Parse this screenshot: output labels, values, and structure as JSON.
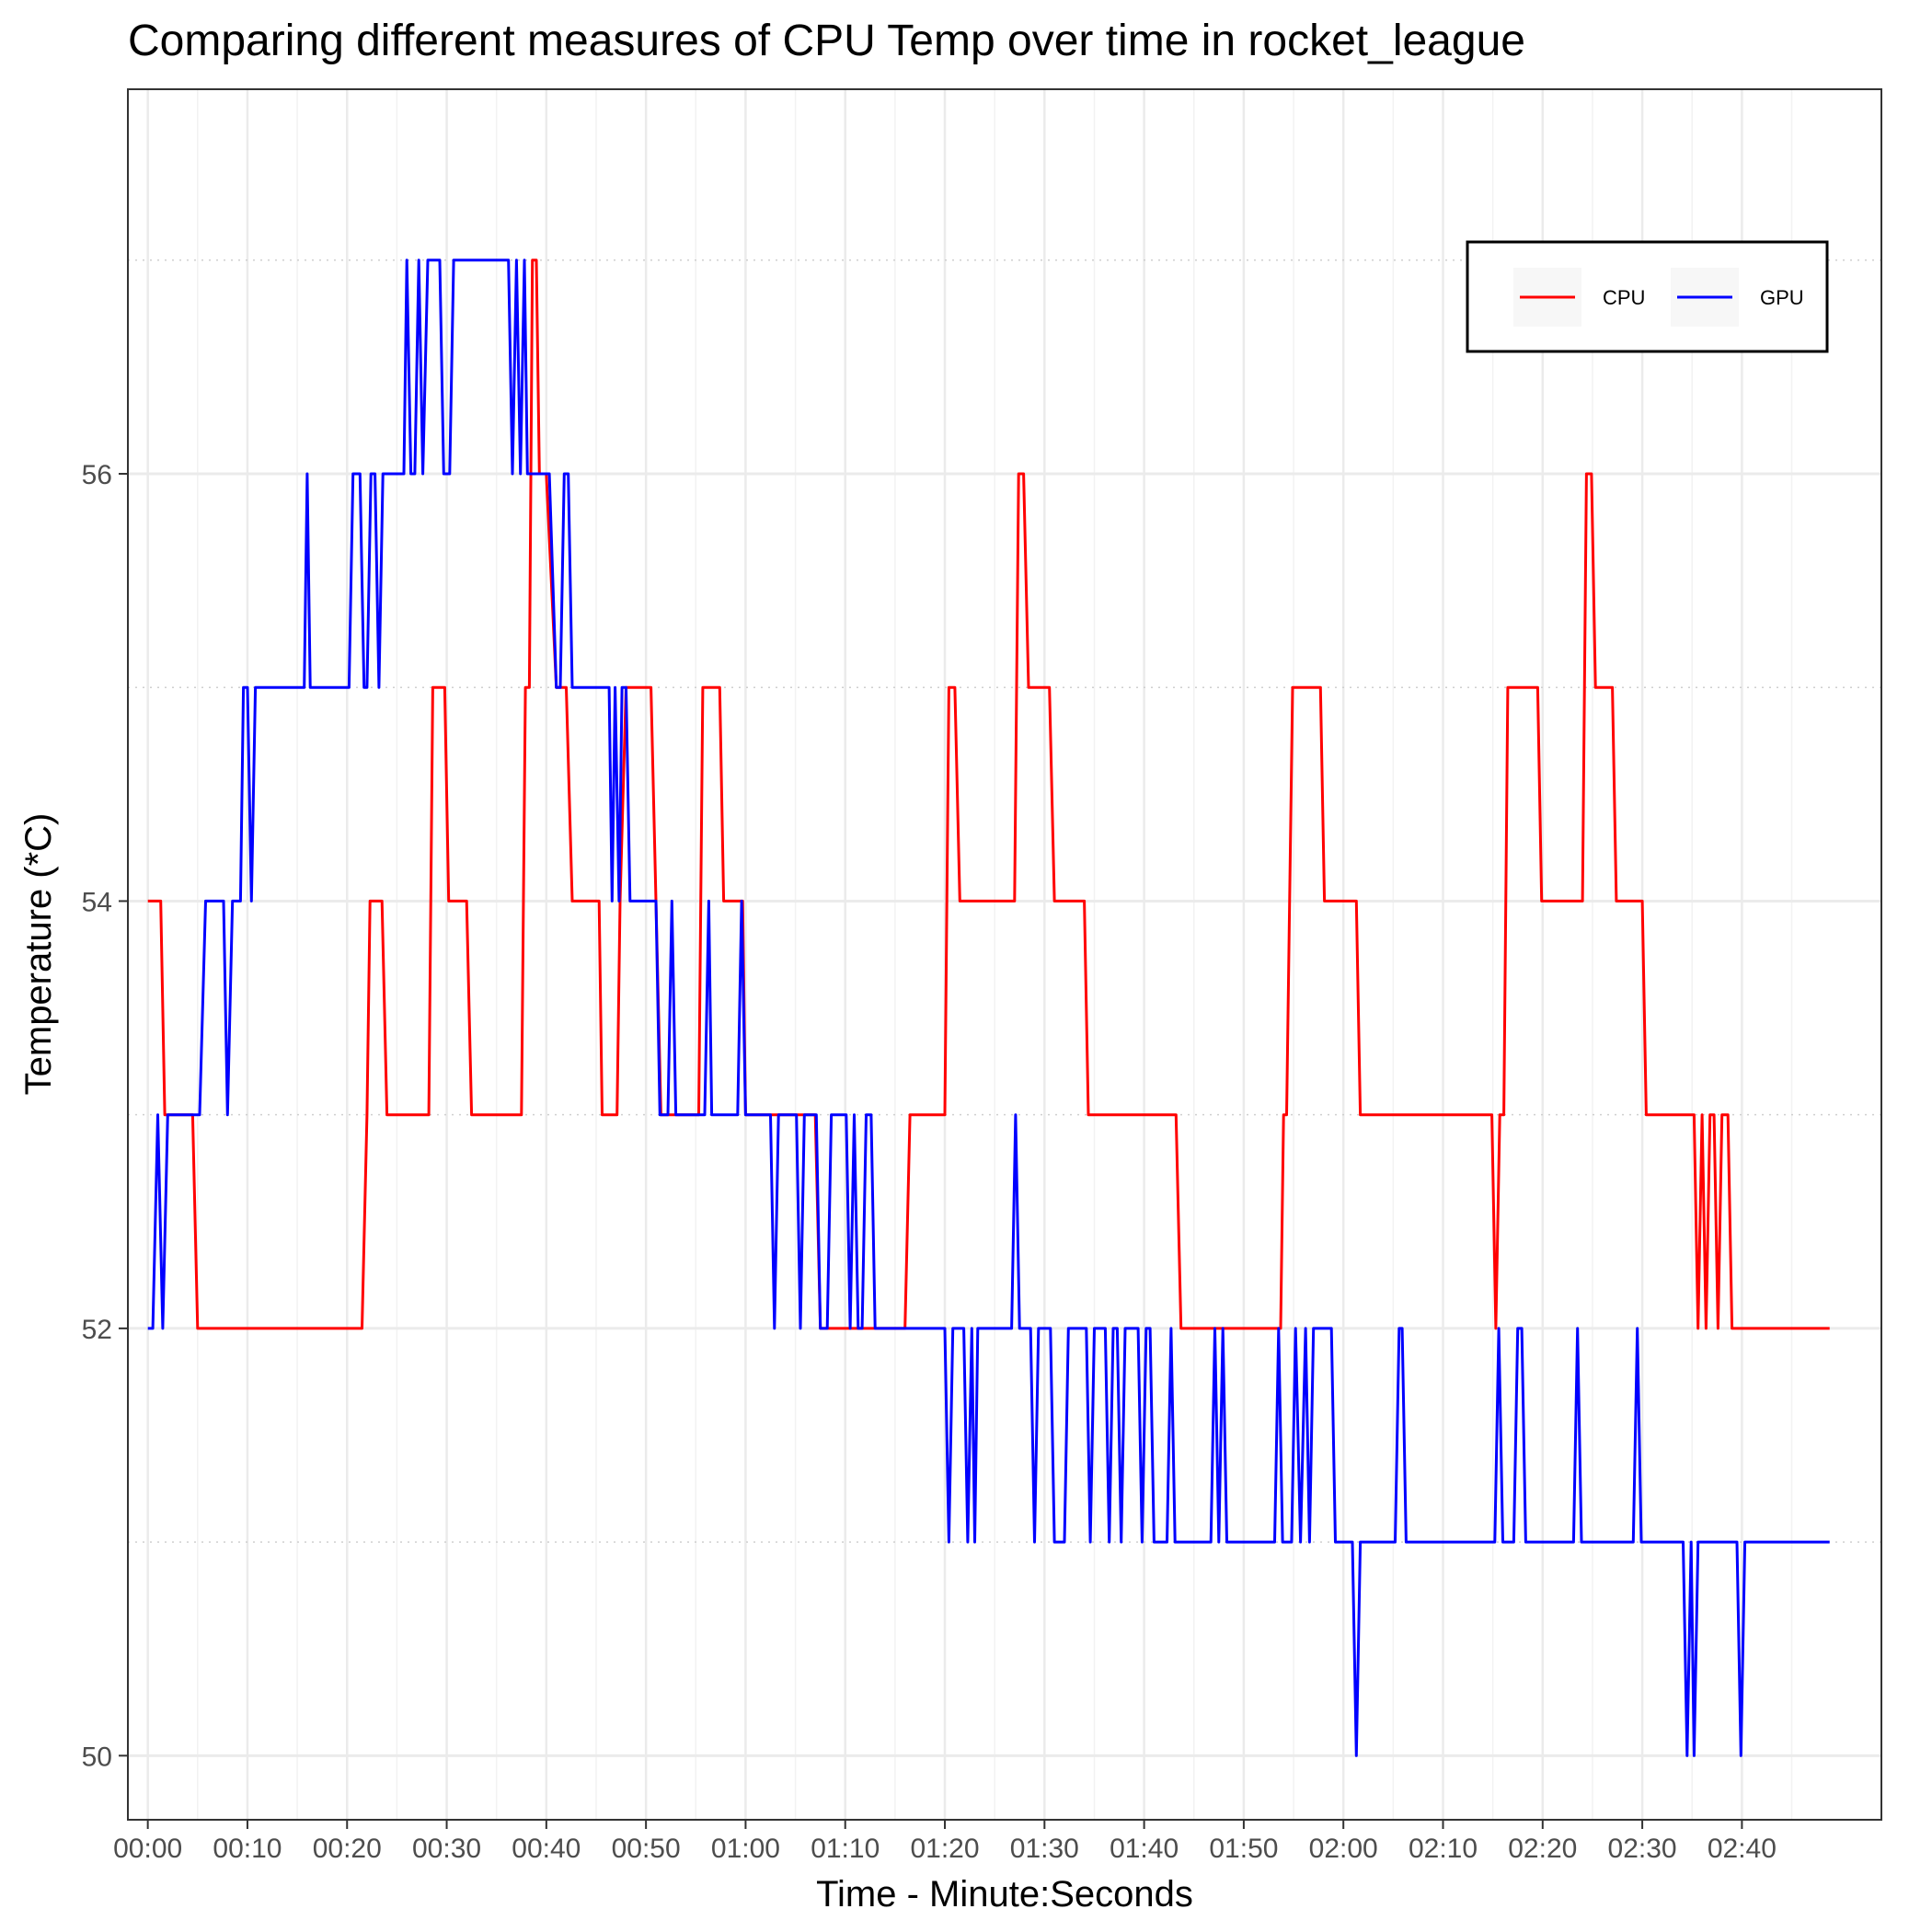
{
  "chart_data": {
    "type": "line",
    "title": "Comparing different measures of CPU Temp over time in rocket_league",
    "xlabel": "Time - Minute:Seconds",
    "ylabel": "Temperature (*C)",
    "x_unit": "seconds",
    "xlim": [
      -2,
      174
    ],
    "ylim": [
      49.7,
      57.8
    ],
    "x_ticks": [
      {
        "value": 0,
        "label": "00:00"
      },
      {
        "value": 10,
        "label": "00:10"
      },
      {
        "value": 20,
        "label": "00:20"
      },
      {
        "value": 30,
        "label": "00:30"
      },
      {
        "value": 40,
        "label": "00:40"
      },
      {
        "value": 50,
        "label": "00:50"
      },
      {
        "value": 60,
        "label": "01:00"
      },
      {
        "value": 70,
        "label": "01:10"
      },
      {
        "value": 80,
        "label": "01:20"
      },
      {
        "value": 90,
        "label": "01:30"
      },
      {
        "value": 100,
        "label": "01:40"
      },
      {
        "value": 110,
        "label": "01:50"
      },
      {
        "value": 120,
        "label": "02:00"
      },
      {
        "value": 130,
        "label": "02:10"
      },
      {
        "value": 140,
        "label": "02:20"
      },
      {
        "value": 150,
        "label": "02:30"
      },
      {
        "value": 160,
        "label": "02:40"
      }
    ],
    "y_ticks": [
      {
        "value": 50,
        "label": "50"
      },
      {
        "value": 52,
        "label": "52"
      },
      {
        "value": 54,
        "label": "54"
      },
      {
        "value": 56,
        "label": "56"
      }
    ],
    "y_minor_gridlines": [
      51,
      53,
      55,
      57
    ],
    "grid": true,
    "legend": {
      "position": "top-right",
      "direction": "horizontal"
    },
    "series": [
      {
        "name": "CPU",
        "color": "#ff0000",
        "points": [
          [
            0,
            54
          ],
          [
            1.3,
            54
          ],
          [
            1.7,
            53
          ],
          [
            4.5,
            53
          ],
          [
            5,
            52
          ],
          [
            21.5,
            52
          ],
          [
            22,
            53
          ],
          [
            22.3,
            54
          ],
          [
            23.5,
            54
          ],
          [
            24,
            53
          ],
          [
            28.2,
            53
          ],
          [
            28.6,
            55
          ],
          [
            29.8,
            55
          ],
          [
            30.2,
            54
          ],
          [
            32,
            54
          ],
          [
            32.5,
            53
          ],
          [
            37.5,
            53
          ],
          [
            37.9,
            55
          ],
          [
            38.3,
            55
          ],
          [
            38.6,
            57
          ],
          [
            39,
            57
          ],
          [
            39.3,
            56
          ],
          [
            40,
            56
          ],
          [
            41,
            55
          ],
          [
            42,
            55
          ],
          [
            42.6,
            54
          ],
          [
            45.3,
            54
          ],
          [
            45.6,
            53
          ],
          [
            47.1,
            53
          ],
          [
            47.4,
            54
          ],
          [
            48,
            55
          ],
          [
            50.5,
            55
          ],
          [
            51.5,
            53
          ],
          [
            55.3,
            53
          ],
          [
            55.7,
            55
          ],
          [
            57.4,
            55
          ],
          [
            57.8,
            54
          ],
          [
            59.7,
            54
          ],
          [
            60,
            53
          ],
          [
            67,
            53
          ],
          [
            67.5,
            52
          ],
          [
            76,
            52
          ],
          [
            76.5,
            53
          ],
          [
            80,
            53
          ],
          [
            80.4,
            55
          ],
          [
            81,
            55
          ],
          [
            81.5,
            54
          ],
          [
            87,
            54
          ],
          [
            87.4,
            56
          ],
          [
            87.9,
            56
          ],
          [
            88.4,
            55
          ],
          [
            90.5,
            55
          ],
          [
            91,
            54
          ],
          [
            94,
            54
          ],
          [
            94.4,
            53
          ],
          [
            103.2,
            53
          ],
          [
            103.7,
            52
          ],
          [
            113.7,
            52
          ],
          [
            114,
            53
          ],
          [
            114.3,
            53
          ],
          [
            114.9,
            55
          ],
          [
            117.7,
            55
          ],
          [
            118.1,
            54
          ],
          [
            121.3,
            54
          ],
          [
            121.7,
            53
          ],
          [
            134.9,
            53
          ],
          [
            135.3,
            52
          ],
          [
            135.7,
            53
          ],
          [
            136.1,
            53
          ],
          [
            136.5,
            55
          ],
          [
            139.5,
            55
          ],
          [
            139.9,
            54
          ],
          [
            144,
            54
          ],
          [
            144.4,
            56
          ],
          [
            144.9,
            56
          ],
          [
            145.3,
            55
          ],
          [
            147,
            55
          ],
          [
            147.4,
            54
          ],
          [
            150,
            54
          ],
          [
            150.4,
            53
          ],
          [
            155.2,
            53
          ],
          [
            155.6,
            52
          ],
          [
            156,
            53
          ],
          [
            156.4,
            52
          ],
          [
            156.8,
            53
          ],
          [
            157.2,
            53
          ],
          [
            157.6,
            52
          ],
          [
            158,
            53
          ],
          [
            158.6,
            53
          ],
          [
            159,
            52
          ],
          [
            168.8,
            52
          ]
        ]
      },
      {
        "name": "GPU",
        "color": "#0000ff",
        "points": [
          [
            0,
            52
          ],
          [
            0.5,
            52
          ],
          [
            1,
            53
          ],
          [
            1.5,
            52
          ],
          [
            2,
            53
          ],
          [
            5.2,
            53
          ],
          [
            5.8,
            54
          ],
          [
            7.6,
            54
          ],
          [
            8,
            53
          ],
          [
            8.5,
            54
          ],
          [
            9.3,
            54
          ],
          [
            9.6,
            55
          ],
          [
            10,
            55
          ],
          [
            10.4,
            54
          ],
          [
            10.8,
            55
          ],
          [
            15.7,
            55
          ],
          [
            16,
            56
          ],
          [
            16.3,
            55
          ],
          [
            20.2,
            55
          ],
          [
            20.6,
            56
          ],
          [
            21.3,
            56
          ],
          [
            21.7,
            55
          ],
          [
            22,
            55
          ],
          [
            22.4,
            56
          ],
          [
            22.8,
            56
          ],
          [
            23.2,
            55
          ],
          [
            23.6,
            56
          ],
          [
            25.7,
            56
          ],
          [
            26,
            57
          ],
          [
            26.4,
            56
          ],
          [
            26.8,
            56
          ],
          [
            27.2,
            57
          ],
          [
            27.6,
            56
          ],
          [
            28.1,
            57
          ],
          [
            29.3,
            57
          ],
          [
            29.7,
            56
          ],
          [
            30.3,
            56
          ],
          [
            30.7,
            57
          ],
          [
            36.2,
            57
          ],
          [
            36.6,
            56
          ],
          [
            37,
            57
          ],
          [
            37.4,
            56
          ],
          [
            37.8,
            57
          ],
          [
            38.1,
            56
          ],
          [
            40.3,
            56
          ],
          [
            41,
            55
          ],
          [
            41.4,
            55
          ],
          [
            41.8,
            56
          ],
          [
            42.2,
            56
          ],
          [
            42.6,
            55
          ],
          [
            46.3,
            55
          ],
          [
            46.6,
            54
          ],
          [
            46.9,
            55
          ],
          [
            47.3,
            54
          ],
          [
            47.6,
            55
          ],
          [
            48,
            55
          ],
          [
            48.4,
            54
          ],
          [
            51,
            54
          ],
          [
            51.4,
            53
          ],
          [
            52.2,
            53
          ],
          [
            52.6,
            54
          ],
          [
            53,
            53
          ],
          [
            55.9,
            53
          ],
          [
            56.3,
            54
          ],
          [
            56.6,
            53
          ],
          [
            59.2,
            53
          ],
          [
            59.6,
            54
          ],
          [
            60,
            53
          ],
          [
            62.5,
            53
          ],
          [
            62.9,
            52
          ],
          [
            63.3,
            53
          ],
          [
            65.1,
            53
          ],
          [
            65.5,
            52
          ],
          [
            65.9,
            53
          ],
          [
            67.1,
            53
          ],
          [
            67.5,
            52
          ],
          [
            68.2,
            52
          ],
          [
            68.6,
            53
          ],
          [
            70.1,
            53
          ],
          [
            70.5,
            52
          ],
          [
            70.9,
            53
          ],
          [
            71.3,
            52
          ],
          [
            71.7,
            52
          ],
          [
            72.1,
            53
          ],
          [
            72.6,
            53
          ],
          [
            73,
            52
          ],
          [
            80,
            52
          ],
          [
            80.4,
            51
          ],
          [
            80.8,
            52
          ],
          [
            81.9,
            52
          ],
          [
            82.3,
            51
          ],
          [
            82.7,
            52
          ],
          [
            83,
            51
          ],
          [
            83.3,
            52
          ],
          [
            86.7,
            52
          ],
          [
            87.1,
            53
          ],
          [
            87.5,
            52
          ],
          [
            88.6,
            52
          ],
          [
            89,
            51
          ],
          [
            89.4,
            52
          ],
          [
            90.6,
            52
          ],
          [
            91,
            51
          ],
          [
            92,
            51
          ],
          [
            92.4,
            52
          ],
          [
            94.2,
            52
          ],
          [
            94.6,
            51
          ],
          [
            95,
            52
          ],
          [
            96.1,
            52
          ],
          [
            96.5,
            51
          ],
          [
            96.9,
            52
          ],
          [
            97.3,
            52
          ],
          [
            97.7,
            51
          ],
          [
            98.1,
            52
          ],
          [
            99.4,
            52
          ],
          [
            99.8,
            51
          ],
          [
            100.2,
            52
          ],
          [
            100.6,
            52
          ],
          [
            101,
            51
          ],
          [
            102.3,
            51
          ],
          [
            102.7,
            52
          ],
          [
            103.1,
            51
          ],
          [
            106.7,
            51
          ],
          [
            107.1,
            52
          ],
          [
            107.5,
            51
          ],
          [
            107.9,
            52
          ],
          [
            108.3,
            51
          ],
          [
            113.1,
            51
          ],
          [
            113.5,
            52
          ],
          [
            113.9,
            51
          ],
          [
            114.8,
            51
          ],
          [
            115.2,
            52
          ],
          [
            115.7,
            51
          ],
          [
            116.2,
            52
          ],
          [
            116.6,
            51
          ],
          [
            117,
            52
          ],
          [
            118.8,
            52
          ],
          [
            119.2,
            51
          ],
          [
            120.9,
            51
          ],
          [
            121.3,
            50
          ],
          [
            121.7,
            51
          ],
          [
            125.2,
            51
          ],
          [
            125.6,
            52
          ],
          [
            125.9,
            52
          ],
          [
            126.3,
            51
          ],
          [
            135.2,
            51
          ],
          [
            135.6,
            52
          ],
          [
            136,
            51
          ],
          [
            137.1,
            51
          ],
          [
            137.5,
            52
          ],
          [
            137.9,
            52
          ],
          [
            138.3,
            51
          ],
          [
            143.1,
            51
          ],
          [
            143.5,
            52
          ],
          [
            143.9,
            51
          ],
          [
            149.1,
            51
          ],
          [
            149.5,
            52
          ],
          [
            149.9,
            51
          ],
          [
            154.1,
            51
          ],
          [
            154.5,
            50
          ],
          [
            154.9,
            51
          ],
          [
            155.2,
            50
          ],
          [
            155.6,
            51
          ],
          [
            159.5,
            51
          ],
          [
            159.9,
            50
          ],
          [
            160.3,
            51
          ],
          [
            168.8,
            51
          ]
        ]
      }
    ]
  }
}
